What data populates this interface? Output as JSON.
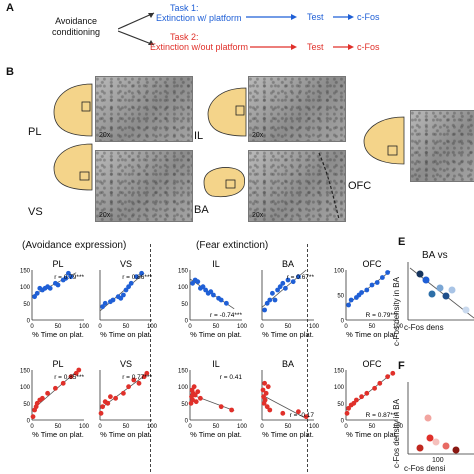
{
  "panel_a": {
    "letter": "A",
    "start": "Avoidance\nconditioning",
    "task1_title": "Task 1:",
    "task1_sub": "Extinction w/ platform",
    "task2_title": "Task 2:",
    "task2_sub": "Extinction w/out platform",
    "test": "Test",
    "cfos": "c-Fos",
    "colors": {
      "task1": "#1f5fd6",
      "task2": "#e0302a"
    }
  },
  "panel_b": {
    "letter": "B",
    "images": [
      {
        "region": "PL",
        "mag": "20x"
      },
      {
        "region": "IL",
        "mag": "20x"
      },
      {
        "region": "VS",
        "mag": "20x"
      },
      {
        "region": "BA",
        "mag": "20x"
      },
      {
        "region": "OFC",
        "mag": ""
      }
    ]
  },
  "panel_c": {
    "group_left": "(Avoidance expression)",
    "group_right": "(Fear extinction)",
    "xlabel": "% Time on plat."
  },
  "panel_e": {
    "letter": "E",
    "title": "BA vs",
    "ylabel": "c-Fos density in BA",
    "xlabel": "c-Fos dens"
  },
  "panel_f": {
    "letter": "F",
    "ylabel": "c-Fos density in BA",
    "xlabel": "c-Fos densi",
    "tick": "100"
  },
  "chart_data": [
    {
      "type": "scatter",
      "title": "PL",
      "color": "#1f5fd6",
      "stat": "r = 0.79***",
      "xticks": [
        "0",
        "50",
        "100"
      ],
      "yticks": [
        "0",
        "50",
        "100",
        "150"
      ],
      "xlim": [
        0,
        100
      ],
      "ylim": [
        0,
        150
      ],
      "x": [
        5,
        10,
        15,
        20,
        30,
        35,
        45,
        60,
        70,
        75,
        65,
        50,
        25
      ],
      "y": [
        70,
        80,
        95,
        90,
        100,
        95,
        110,
        120,
        140,
        130,
        125,
        105,
        95
      ]
    },
    {
      "type": "scatter",
      "title": "VS",
      "color": "#1f5fd6",
      "stat": "r = 0.86***",
      "xticks": [
        "0",
        "50",
        "100"
      ],
      "yticks": [],
      "xlim": [
        0,
        100
      ],
      "ylim": [
        0,
        150
      ],
      "x": [
        5,
        10,
        20,
        25,
        35,
        45,
        50,
        60,
        70,
        80,
        55,
        40
      ],
      "y": [
        40,
        50,
        55,
        60,
        70,
        75,
        90,
        110,
        130,
        140,
        100,
        65
      ]
    },
    {
      "type": "scatter",
      "title": "IL",
      "color": "#1f5fd6",
      "stat": "r = -0.74***",
      "xticks": [
        "0",
        "50",
        "100"
      ],
      "yticks": [
        "0",
        "50",
        "100",
        "150"
      ],
      "xlim": [
        0,
        100
      ],
      "ylim": [
        0,
        150
      ],
      "x": [
        5,
        10,
        15,
        20,
        25,
        30,
        35,
        45,
        60,
        70,
        55,
        40
      ],
      "y": [
        110,
        120,
        115,
        95,
        100,
        90,
        80,
        75,
        60,
        50,
        65,
        85
      ]
    },
    {
      "type": "scatter",
      "title": "BA",
      "color": "#1f5fd6",
      "stat": "r = 0.67**",
      "xticks": [
        "0",
        "50",
        "100"
      ],
      "yticks": [],
      "xlim": [
        0,
        100
      ],
      "ylim": [
        0,
        150
      ],
      "x": [
        5,
        10,
        15,
        20,
        25,
        30,
        35,
        40,
        45,
        50,
        60,
        70
      ],
      "y": [
        30,
        50,
        60,
        80,
        60,
        90,
        100,
        110,
        95,
        120,
        115,
        130
      ]
    },
    {
      "type": "scatter",
      "title": "OFC",
      "color": "#1f5fd6",
      "stat": "R = 0.79***",
      "xticks": [
        "0",
        "50",
        "100"
      ],
      "yticks": [
        "0",
        "50",
        "100"
      ],
      "xlim": [
        0,
        100
      ],
      "ylim": [
        0,
        100
      ],
      "x": [
        5,
        10,
        20,
        25,
        30,
        40,
        50,
        60,
        70,
        80
      ],
      "y": [
        30,
        40,
        45,
        50,
        55,
        60,
        70,
        75,
        85,
        95
      ]
    },
    {
      "type": "scatter",
      "title": "PL",
      "color": "#e0302a",
      "stat": "r = 0.85***",
      "xticks": [
        "0",
        "50",
        "100"
      ],
      "yticks": [
        "0",
        "50",
        "100",
        "150"
      ],
      "xlim": [
        0,
        100
      ],
      "ylim": [
        0,
        150
      ],
      "x": [
        2,
        5,
        8,
        10,
        15,
        20,
        30,
        45,
        60,
        75,
        85,
        90
      ],
      "y": [
        10,
        30,
        40,
        50,
        60,
        65,
        80,
        95,
        110,
        130,
        140,
        150
      ]
    },
    {
      "type": "scatter",
      "title": "VS",
      "color": "#e0302a",
      "stat": "r = 0.77***",
      "xticks": [
        "0",
        "50",
        "100"
      ],
      "yticks": [],
      "xlim": [
        0,
        100
      ],
      "ylim": [
        0,
        150
      ],
      "x": [
        2,
        5,
        10,
        15,
        20,
        30,
        45,
        55,
        65,
        75,
        85,
        90
      ],
      "y": [
        20,
        40,
        55,
        50,
        70,
        65,
        80,
        100,
        120,
        110,
        130,
        140
      ]
    },
    {
      "type": "scatter",
      "title": "IL",
      "color": "#e0302a",
      "stat": "r = 0.41",
      "xticks": [
        "0",
        "50",
        "100"
      ],
      "yticks": [
        "0",
        "50",
        "100",
        "150"
      ],
      "xlim": [
        0,
        100
      ],
      "ylim": [
        0,
        150
      ],
      "x": [
        2,
        3,
        4,
        5,
        6,
        8,
        10,
        12,
        15,
        20,
        60,
        80
      ],
      "y": [
        50,
        70,
        90,
        60,
        80,
        100,
        75,
        55,
        85,
        65,
        40,
        30
      ]
    },
    {
      "type": "scatter",
      "title": "BA",
      "color": "#e0302a",
      "stat": "r = -0.17",
      "xticks": [
        "0",
        "50",
        "100"
      ],
      "yticks": [],
      "xlim": [
        0,
        100
      ],
      "ylim": [
        0,
        150
      ],
      "x": [
        2,
        3,
        4,
        5,
        6,
        8,
        10,
        12,
        15,
        40,
        70,
        85
      ],
      "y": [
        90,
        70,
        50,
        110,
        60,
        80,
        40,
        100,
        30,
        20,
        25,
        10
      ]
    },
    {
      "type": "scatter",
      "title": "OFC",
      "color": "#e0302a",
      "stat": "R = 0.87***",
      "xticks": [
        "0",
        "50",
        "100"
      ],
      "yticks": [
        "0",
        "50",
        "100",
        "150"
      ],
      "xlim": [
        0,
        100
      ],
      "ylim": [
        0,
        150
      ],
      "x": [
        2,
        5,
        10,
        15,
        20,
        30,
        40,
        55,
        65,
        80,
        90
      ],
      "y": [
        20,
        35,
        45,
        50,
        60,
        70,
        80,
        95,
        110,
        130,
        140
      ]
    }
  ]
}
